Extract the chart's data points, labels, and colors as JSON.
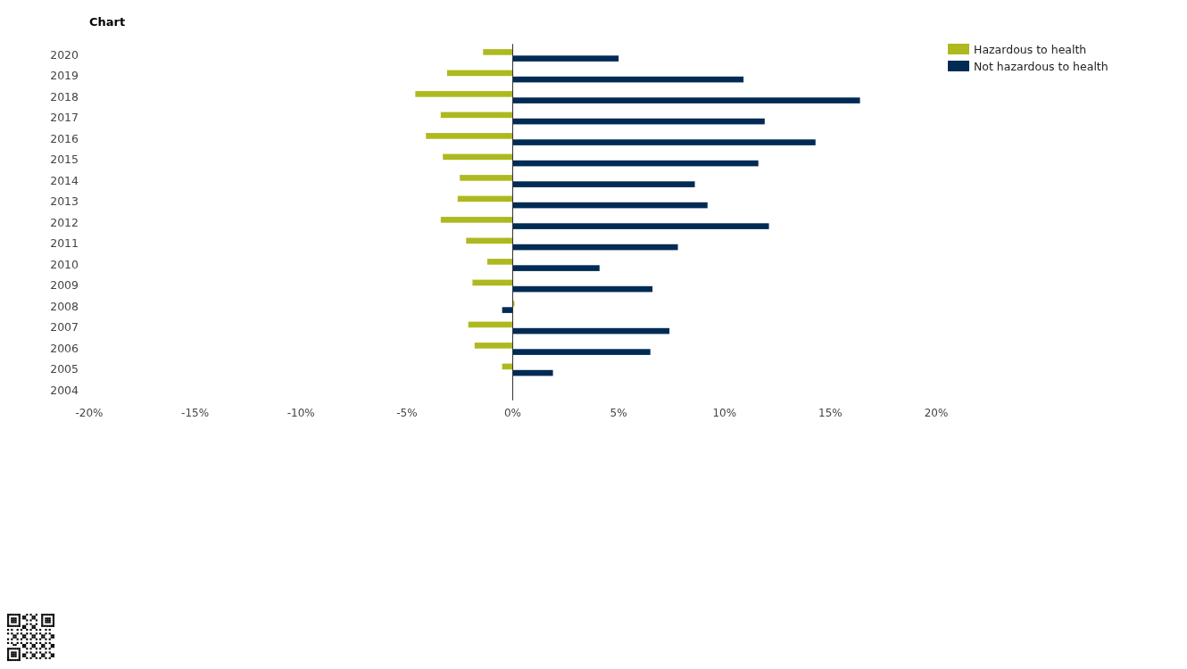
{
  "chart_data": {
    "type": "bar",
    "orientation": "horizontal",
    "title": "Chart",
    "categories": [
      "2020",
      "2019",
      "2018",
      "2017",
      "2016",
      "2015",
      "2014",
      "2013",
      "2012",
      "2011",
      "2010",
      "2009",
      "2008",
      "2007",
      "2006",
      "2005",
      "2004"
    ],
    "series": [
      {
        "name": "Hazardous to health",
        "color": "#adb91f",
        "values": [
          -1.4,
          -3.1,
          -4.6,
          -3.4,
          -4.1,
          -3.3,
          -2.5,
          -2.6,
          -3.4,
          -2.2,
          -1.2,
          -1.9,
          0.08,
          -2.1,
          -1.8,
          -0.5,
          null
        ]
      },
      {
        "name": "Not hazardous to health",
        "color": "#002b55",
        "values": [
          5.0,
          10.9,
          16.4,
          11.9,
          14.3,
          11.6,
          8.6,
          9.2,
          12.1,
          7.8,
          4.1,
          6.6,
          -0.5,
          7.4,
          6.5,
          1.9,
          null
        ]
      }
    ],
    "xlim": [
      -20,
      20
    ],
    "xticks": [
      {
        "value": -20,
        "label": "-20%"
      },
      {
        "value": -15,
        "label": "-15%"
      },
      {
        "value": -10,
        "label": "-10%"
      },
      {
        "value": -5,
        "label": "-5%"
      },
      {
        "value": 0,
        "label": "0%"
      },
      {
        "value": 5,
        "label": "5%"
      },
      {
        "value": 10,
        "label": "10%"
      },
      {
        "value": 15,
        "label": "15%"
      },
      {
        "value": 20,
        "label": "20%"
      }
    ],
    "legend": "top right"
  }
}
